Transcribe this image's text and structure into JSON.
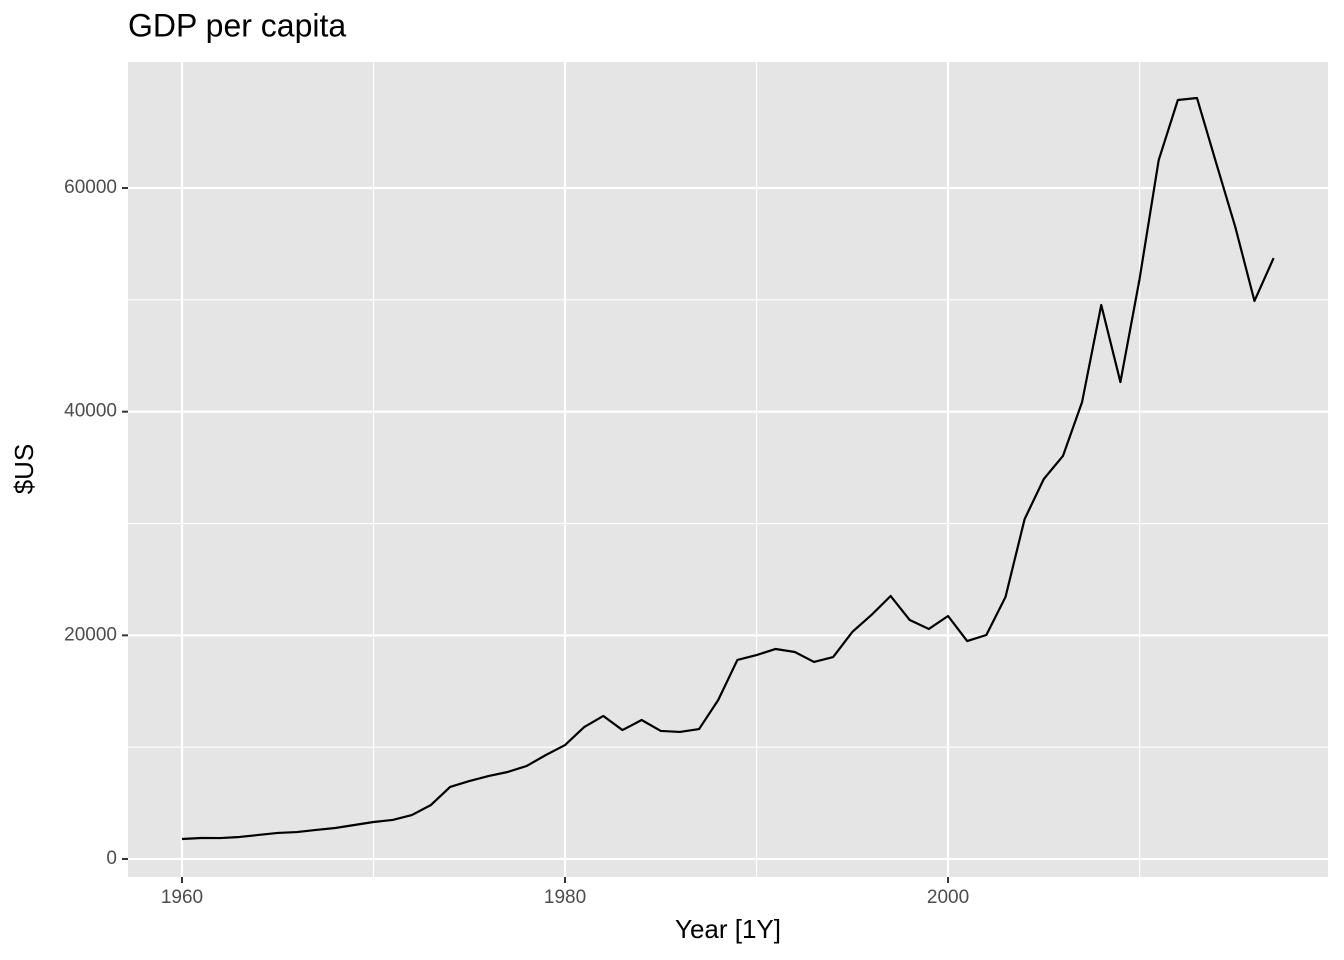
{
  "chart_data": {
    "type": "line",
    "title": "GDP per capita",
    "x_label": "Year [1Y]",
    "y_label": "$US",
    "x": [
      1960,
      1961,
      1962,
      1963,
      1964,
      1965,
      1966,
      1967,
      1968,
      1969,
      1970,
      1971,
      1972,
      1973,
      1974,
      1975,
      1976,
      1977,
      1978,
      1979,
      1980,
      1981,
      1982,
      1983,
      1984,
      1985,
      1986,
      1987,
      1988,
      1989,
      1990,
      1991,
      1992,
      1993,
      1994,
      1995,
      1996,
      1997,
      1998,
      1999,
      2000,
      2001,
      2002,
      2003,
      2004,
      2005,
      2006,
      2007,
      2008,
      2009,
      2010,
      2011,
      2012,
      2013,
      2014,
      2015,
      2016,
      2017
    ],
    "series": [
      {
        "color": "#000000",
        "values": [
          1790,
          1880,
          1870,
          1970,
          2150,
          2330,
          2410,
          2600,
          2770,
          3040,
          3310,
          3490,
          3930,
          4830,
          6440,
          6970,
          7420,
          7780,
          8320,
          9300,
          10190,
          11800,
          12790,
          11530,
          12430,
          11450,
          11360,
          11620,
          14220,
          17800,
          18240,
          18780,
          18510,
          17620,
          18060,
          20300,
          21820,
          23520,
          21370,
          20570,
          21730,
          19490,
          20030,
          23430,
          30400,
          33980,
          36040,
          40870,
          49540,
          42650,
          51860,
          62500,
          67870,
          68050,
          62240,
          56510,
          49900,
          53740
        ]
      }
    ],
    "xlim": [
      1957.18,
      2019.84
    ],
    "ylim": [
      -1610,
      71270
    ],
    "xticks": [
      1960,
      1980,
      2000
    ],
    "yticks": [
      0,
      20000,
      40000,
      60000
    ],
    "x_minor_ticks": [
      1970,
      1990,
      2010
    ],
    "y_minor_ticks": [
      10000,
      30000,
      50000
    ],
    "grid": true,
    "background": "#e5e5e5"
  }
}
